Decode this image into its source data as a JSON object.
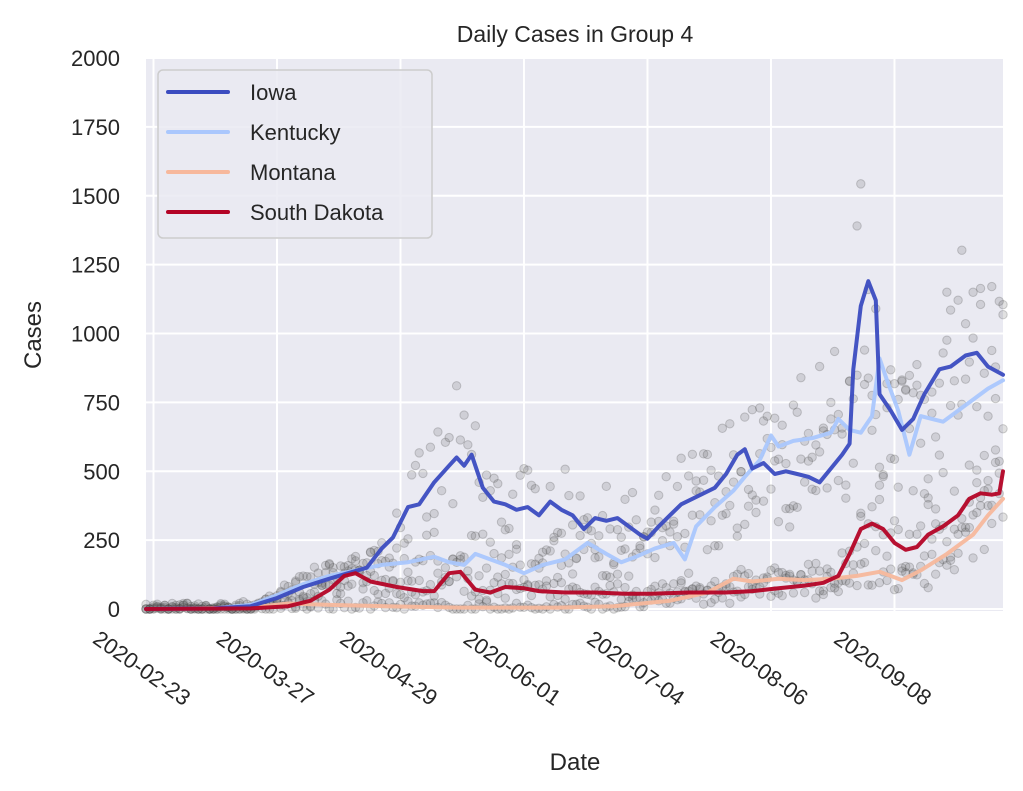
{
  "chart_data": {
    "type": "line",
    "title": "Daily Cases in Group 4",
    "xlabel": "Date",
    "ylabel": "Cases",
    "ylim": [
      0,
      2000
    ],
    "xlim": [
      "2020-02-21",
      "2020-10-07"
    ],
    "grid": true,
    "legend_position": "top-left",
    "yticks": [
      0,
      250,
      500,
      750,
      1000,
      1250,
      1500,
      1750,
      2000
    ],
    "ytick_labels": [
      "0",
      "250",
      "500",
      "750",
      "1000",
      "1250",
      "1500",
      "1750",
      "2000"
    ],
    "xticks": [
      "2020-02-23",
      "2020-03-27",
      "2020-04-29",
      "2020-06-01",
      "2020-07-04",
      "2020-08-06",
      "2020-09-08"
    ],
    "xtick_labels": [
      "2020-02-23",
      "2020-03-27",
      "2020-04-29",
      "2020-06-01",
      "2020-07-04",
      "2020-08-06",
      "2020-09-08"
    ],
    "series": [
      {
        "name": "Iowa",
        "color": "#3b4cc0",
        "points": [
          [
            "2020-02-21",
            0
          ],
          [
            "2020-03-10",
            2
          ],
          [
            "2020-03-20",
            10
          ],
          [
            "2020-03-27",
            40
          ],
          [
            "2020-04-03",
            80
          ],
          [
            "2020-04-10",
            110
          ],
          [
            "2020-04-15",
            130
          ],
          [
            "2020-04-20",
            150
          ],
          [
            "2020-04-24",
            220
          ],
          [
            "2020-04-27",
            260
          ],
          [
            "2020-05-01",
            370
          ],
          [
            "2020-05-04",
            380
          ],
          [
            "2020-05-08",
            460
          ],
          [
            "2020-05-12",
            520
          ],
          [
            "2020-05-14",
            550
          ],
          [
            "2020-05-16",
            520
          ],
          [
            "2020-05-18",
            560
          ],
          [
            "2020-05-21",
            440
          ],
          [
            "2020-05-24",
            390
          ],
          [
            "2020-05-27",
            380
          ],
          [
            "2020-05-30",
            360
          ],
          [
            "2020-06-02",
            370
          ],
          [
            "2020-06-05",
            340
          ],
          [
            "2020-06-08",
            390
          ],
          [
            "2020-06-11",
            360
          ],
          [
            "2020-06-14",
            340
          ],
          [
            "2020-06-17",
            290
          ],
          [
            "2020-06-20",
            330
          ],
          [
            "2020-06-23",
            320
          ],
          [
            "2020-06-26",
            330
          ],
          [
            "2020-06-29",
            300
          ],
          [
            "2020-07-02",
            270
          ],
          [
            "2020-07-04",
            255
          ],
          [
            "2020-07-07",
            300
          ],
          [
            "2020-07-10",
            340
          ],
          [
            "2020-07-13",
            380
          ],
          [
            "2020-07-16",
            400
          ],
          [
            "2020-07-19",
            420
          ],
          [
            "2020-07-22",
            440
          ],
          [
            "2020-07-25",
            490
          ],
          [
            "2020-07-28",
            560
          ],
          [
            "2020-07-30",
            580
          ],
          [
            "2020-08-01",
            510
          ],
          [
            "2020-08-04",
            530
          ],
          [
            "2020-08-07",
            490
          ],
          [
            "2020-08-10",
            500
          ],
          [
            "2020-08-13",
            490
          ],
          [
            "2020-08-16",
            480
          ],
          [
            "2020-08-19",
            460
          ],
          [
            "2020-08-22",
            510
          ],
          [
            "2020-08-25",
            560
          ],
          [
            "2020-08-27",
            600
          ],
          [
            "2020-08-28",
            870
          ],
          [
            "2020-08-30",
            1100
          ],
          [
            "2020-09-01",
            1190
          ],
          [
            "2020-09-03",
            1120
          ],
          [
            "2020-09-04",
            780
          ],
          [
            "2020-09-07",
            720
          ],
          [
            "2020-09-10",
            650
          ],
          [
            "2020-09-13",
            690
          ],
          [
            "2020-09-16",
            780
          ],
          [
            "2020-09-20",
            870
          ],
          [
            "2020-09-23",
            880
          ],
          [
            "2020-09-27",
            920
          ],
          [
            "2020-09-30",
            930
          ],
          [
            "2020-10-03",
            880
          ],
          [
            "2020-10-07",
            850
          ]
        ]
      },
      {
        "name": "Kentucky",
        "color": "#aac7fd",
        "points": [
          [
            "2020-02-21",
            0
          ],
          [
            "2020-03-10",
            2
          ],
          [
            "2020-03-20",
            15
          ],
          [
            "2020-03-27",
            50
          ],
          [
            "2020-04-03",
            90
          ],
          [
            "2020-04-10",
            120
          ],
          [
            "2020-04-17",
            140
          ],
          [
            "2020-04-24",
            160
          ],
          [
            "2020-05-01",
            170
          ],
          [
            "2020-05-08",
            190
          ],
          [
            "2020-05-12",
            170
          ],
          [
            "2020-05-16",
            160
          ],
          [
            "2020-05-19",
            200
          ],
          [
            "2020-05-23",
            180
          ],
          [
            "2020-05-27",
            160
          ],
          [
            "2020-06-01",
            130
          ],
          [
            "2020-06-06",
            160
          ],
          [
            "2020-06-12",
            180
          ],
          [
            "2020-06-18",
            240
          ],
          [
            "2020-06-23",
            200
          ],
          [
            "2020-06-27",
            170
          ],
          [
            "2020-07-01",
            190
          ],
          [
            "2020-07-06",
            220
          ],
          [
            "2020-07-11",
            240
          ],
          [
            "2020-07-14",
            180
          ],
          [
            "2020-07-17",
            300
          ],
          [
            "2020-07-22",
            370
          ],
          [
            "2020-07-27",
            430
          ],
          [
            "2020-07-30",
            480
          ],
          [
            "2020-08-03",
            540
          ],
          [
            "2020-08-06",
            630
          ],
          [
            "2020-08-08",
            590
          ],
          [
            "2020-08-12",
            610
          ],
          [
            "2020-08-17",
            620
          ],
          [
            "2020-08-22",
            640
          ],
          [
            "2020-08-24",
            690
          ],
          [
            "2020-08-27",
            650
          ],
          [
            "2020-08-30",
            640
          ],
          [
            "2020-09-02",
            700
          ],
          [
            "2020-09-04",
            910
          ],
          [
            "2020-09-06",
            830
          ],
          [
            "2020-09-09",
            720
          ],
          [
            "2020-09-12",
            560
          ],
          [
            "2020-09-15",
            700
          ],
          [
            "2020-09-18",
            690
          ],
          [
            "2020-09-21",
            680
          ],
          [
            "2020-09-25",
            720
          ],
          [
            "2020-09-29",
            760
          ],
          [
            "2020-10-03",
            800
          ],
          [
            "2020-10-07",
            830
          ]
        ]
      },
      {
        "name": "Montana",
        "color": "#f7b89c",
        "points": [
          [
            "2020-02-21",
            0
          ],
          [
            "2020-03-20",
            5
          ],
          [
            "2020-03-30",
            20
          ],
          [
            "2020-04-10",
            15
          ],
          [
            "2020-04-25",
            10
          ],
          [
            "2020-05-15",
            5
          ],
          [
            "2020-06-10",
            5
          ],
          [
            "2020-06-25",
            10
          ],
          [
            "2020-07-10",
            30
          ],
          [
            "2020-07-20",
            60
          ],
          [
            "2020-07-27",
            110
          ],
          [
            "2020-08-01",
            100
          ],
          [
            "2020-08-08",
            110
          ],
          [
            "2020-08-15",
            105
          ],
          [
            "2020-08-22",
            110
          ],
          [
            "2020-08-29",
            120
          ],
          [
            "2020-09-04",
            135
          ],
          [
            "2020-09-10",
            105
          ],
          [
            "2020-09-15",
            140
          ],
          [
            "2020-09-22",
            200
          ],
          [
            "2020-09-29",
            270
          ],
          [
            "2020-10-03",
            340
          ],
          [
            "2020-10-07",
            400
          ]
        ]
      },
      {
        "name": "South Dakota",
        "color": "#b40426",
        "points": [
          [
            "2020-02-21",
            0
          ],
          [
            "2020-03-20",
            2
          ],
          [
            "2020-03-30",
            10
          ],
          [
            "2020-04-05",
            30
          ],
          [
            "2020-04-10",
            70
          ],
          [
            "2020-04-14",
            120
          ],
          [
            "2020-04-17",
            130
          ],
          [
            "2020-04-21",
            100
          ],
          [
            "2020-04-28",
            80
          ],
          [
            "2020-05-05",
            65
          ],
          [
            "2020-05-08",
            65
          ],
          [
            "2020-05-12",
            130
          ],
          [
            "2020-05-15",
            135
          ],
          [
            "2020-05-19",
            70
          ],
          [
            "2020-05-23",
            60
          ],
          [
            "2020-05-27",
            80
          ],
          [
            "2020-06-01",
            75
          ],
          [
            "2020-06-05",
            65
          ],
          [
            "2020-06-12",
            60
          ],
          [
            "2020-06-20",
            60
          ],
          [
            "2020-06-28",
            55
          ],
          [
            "2020-07-05",
            55
          ],
          [
            "2020-07-15",
            60
          ],
          [
            "2020-07-25",
            60
          ],
          [
            "2020-08-01",
            65
          ],
          [
            "2020-08-08",
            75
          ],
          [
            "2020-08-15",
            85
          ],
          [
            "2020-08-20",
            95
          ],
          [
            "2020-08-24",
            120
          ],
          [
            "2020-08-27",
            200
          ],
          [
            "2020-08-30",
            290
          ],
          [
            "2020-09-02",
            310
          ],
          [
            "2020-09-05",
            290
          ],
          [
            "2020-09-08",
            240
          ],
          [
            "2020-09-11",
            215
          ],
          [
            "2020-09-14",
            225
          ],
          [
            "2020-09-17",
            270
          ],
          [
            "2020-09-21",
            300
          ],
          [
            "2020-09-25",
            340
          ],
          [
            "2020-09-28",
            400
          ],
          [
            "2020-10-01",
            420
          ],
          [
            "2020-10-04",
            415
          ],
          [
            "2020-10-06",
            420
          ],
          [
            "2020-10-07",
            500
          ]
        ]
      }
    ],
    "scatter_note": "Raw daily case counts shown as semi-transparent gray points behind the smoothed lines"
  }
}
